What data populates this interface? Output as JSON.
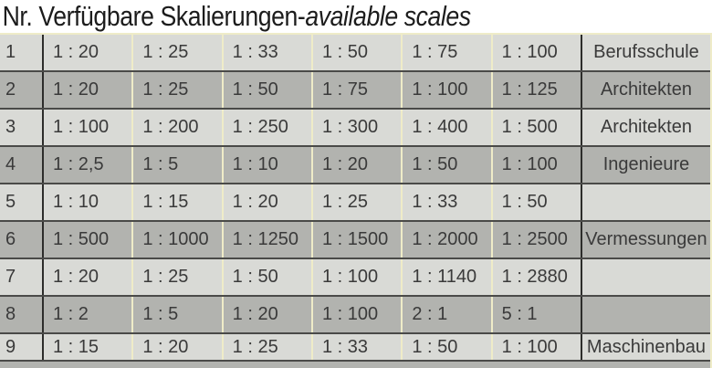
{
  "title": {
    "main": "Nr. Verfügbare Skalierungen",
    "separator": " - ",
    "subtitle": "available scales"
  },
  "colors": {
    "background": "#ffffff",
    "row_light": "#d9dad6",
    "row_dark": "#b2b3af",
    "grid_dark_line": "#4a4a48",
    "grid_black_line": "#2d2d2b",
    "grid_pale_line": "#efecc8",
    "text": "#3a3a3a"
  },
  "table": {
    "rows": [
      {
        "nr": "1",
        "shade": "light",
        "scales": [
          "1 : 20",
          "1 : 25",
          "1 : 33",
          "1 : 50",
          "1 : 75",
          "1 : 100"
        ],
        "category": "Berufsschule"
      },
      {
        "nr": "2",
        "shade": "dark",
        "scales": [
          "1 : 20",
          "1 : 25",
          "1 : 50",
          "1 : 75",
          "1 : 100",
          "1 : 125"
        ],
        "category": "Architekten"
      },
      {
        "nr": "3",
        "shade": "light",
        "scales": [
          "1 : 100",
          "1 : 200",
          "1 : 250",
          "1 : 300",
          "1 : 400",
          "1 : 500"
        ],
        "category": "Architekten"
      },
      {
        "nr": "4",
        "shade": "dark",
        "scales": [
          "1 : 2,5",
          "1 : 5",
          "1 : 10",
          "1 : 20",
          "1 : 50",
          "1 : 100"
        ],
        "category": "Ingenieure"
      },
      {
        "nr": "5",
        "shade": "light",
        "scales": [
          "1 : 10",
          "1 : 15",
          "1 : 20",
          "1 : 25",
          "1 : 33",
          "1 : 50"
        ],
        "category": ""
      },
      {
        "nr": "6",
        "shade": "dark",
        "scales": [
          "1 : 500",
          "1 : 1000",
          "1 : 1250",
          "1 : 1500",
          "1 : 2000",
          "1 : 2500"
        ],
        "category": "Vermessungen"
      },
      {
        "nr": "7",
        "shade": "light",
        "scales": [
          "1 : 20",
          "1 : 25",
          "1 : 50",
          "1 : 100",
          "1 : 1140",
          "1 : 2880"
        ],
        "category": ""
      },
      {
        "nr": "8",
        "shade": "dark",
        "scales": [
          "1 : 2",
          "1 : 5",
          "1 : 20",
          "1 : 100",
          "2 : 1",
          "5 : 1"
        ],
        "category": ""
      },
      {
        "nr": "9",
        "shade": "light",
        "scales": [
          "1 : 15",
          "1 : 20",
          "1 : 25",
          "1 : 33",
          "1 : 50",
          "1 : 100"
        ],
        "category": "Maschinenbau",
        "short": true
      }
    ],
    "cropped_next_row_shade": "dark"
  }
}
